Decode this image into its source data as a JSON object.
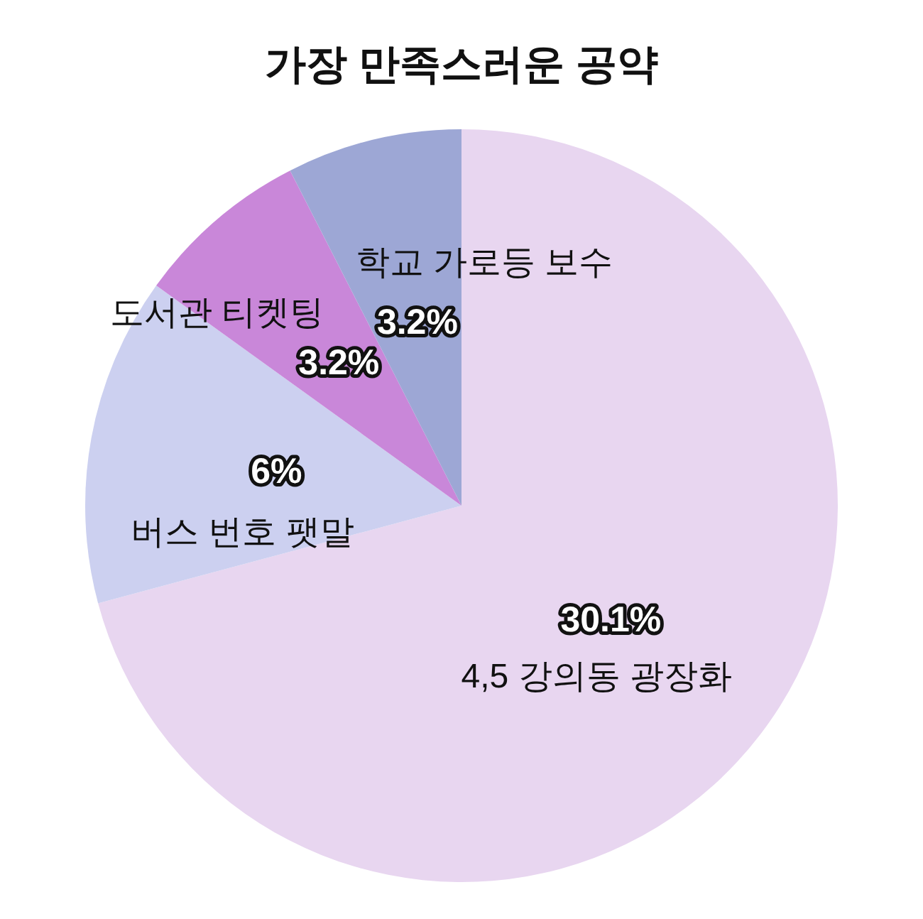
{
  "chart_data": {
    "type": "pie",
    "title": "가장 만족스러운 공약",
    "categories": [
      "4,5 강의동 광장화",
      "버스 번호 팻말",
      "도서관 티켓팅",
      "학교 가로등 보수"
    ],
    "values": [
      30.1,
      6,
      3.2,
      3.2
    ],
    "value_labels": [
      "30.1%",
      "6%",
      "3.2%",
      "3.2%"
    ],
    "colors": [
      "#e8d6f0",
      "#ccd0f0",
      "#c987d9",
      "#9da7d5"
    ]
  }
}
